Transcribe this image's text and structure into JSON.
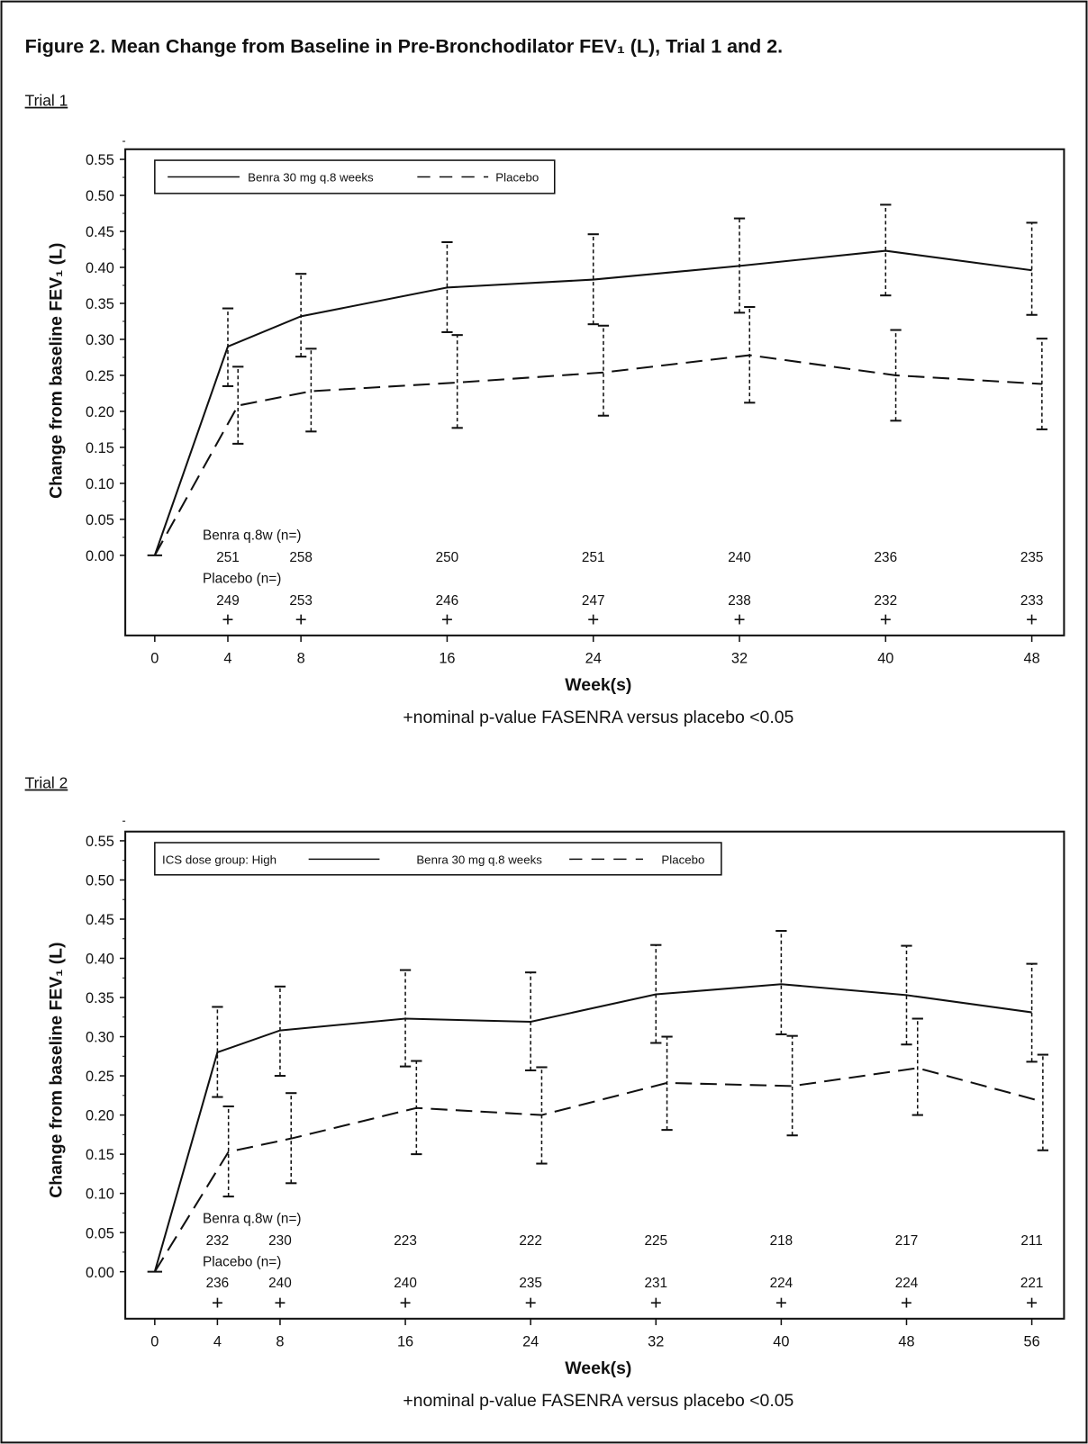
{
  "title": "Figure 2. Mean Change from Baseline in Pre-Bronchodilator FEV₁ (L), Trial 1 and 2.",
  "footnote": "+nominal p-value FASENRA versus placebo <0.05",
  "chart_data": [
    {
      "type": "line",
      "panel_label": "Trial 1",
      "xlabel": "Week(s)",
      "ylabel": "Change from baseline FEV₁ (L)",
      "ylim": [
        0,
        0.55
      ],
      "yticks": [
        "0.00",
        "0.05",
        "0.10",
        "0.15",
        "0.20",
        "0.25",
        "0.30",
        "0.35",
        "0.40",
        "0.45",
        "0.50",
        "0.55"
      ],
      "x": [
        0,
        4,
        8,
        16,
        24,
        32,
        40,
        48
      ],
      "legend": {
        "placement": "top-left",
        "prefix": "",
        "entries": [
          "Benra 30 mg q.8 weeks",
          "Placebo"
        ]
      },
      "series": [
        {
          "name": "Benra 30 mg q.8 weeks",
          "style": "solid",
          "values": [
            0,
            0.29,
            0.332,
            0.372,
            0.383,
            0.402,
            0.423,
            0.396
          ],
          "lower": [
            null,
            0.235,
            0.276,
            0.31,
            0.321,
            0.337,
            0.361,
            0.334
          ],
          "upper": [
            null,
            0.343,
            0.391,
            0.435,
            0.446,
            0.468,
            0.487,
            0.462
          ]
        },
        {
          "name": "Placebo",
          "style": "dashed",
          "values": [
            0,
            0.208,
            0.228,
            0.24,
            0.254,
            0.278,
            0.25,
            0.238
          ],
          "lower": [
            null,
            0.155,
            0.172,
            0.177,
            0.194,
            0.212,
            0.187,
            0.175
          ],
          "upper": [
            null,
            0.262,
            0.287,
            0.306,
            0.319,
            0.345,
            0.313,
            0.301
          ]
        }
      ],
      "n_tables": [
        {
          "label": "Benra q.8w (n=)",
          "values": [
            "251",
            "258",
            "250",
            "251",
            "240",
            "236",
            "235"
          ]
        },
        {
          "label": "Placebo (n=)",
          "values": [
            "249",
            "253",
            "246",
            "247",
            "238",
            "232",
            "233"
          ]
        }
      ],
      "significance_marker": "+"
    },
    {
      "type": "line",
      "panel_label": "Trial 2",
      "xlabel": "Week(s)",
      "ylabel": "Change from baseline FEV₁ (L)",
      "ylim": [
        0,
        0.55
      ],
      "yticks": [
        "0.00",
        "0.05",
        "0.10",
        "0.15",
        "0.20",
        "0.25",
        "0.30",
        "0.35",
        "0.40",
        "0.45",
        "0.50",
        "0.55"
      ],
      "x": [
        0,
        4,
        8,
        16,
        24,
        32,
        40,
        48,
        56
      ],
      "legend": {
        "placement": "top-left",
        "prefix": "ICS dose group: High",
        "entries": [
          "Benra 30 mg q.8 weeks",
          "Placebo"
        ]
      },
      "series": [
        {
          "name": "Benra 30 mg q.8 weeks",
          "style": "solid",
          "values": [
            0,
            0.28,
            0.308,
            0.323,
            0.319,
            0.354,
            0.367,
            0.353,
            0.331
          ],
          "lower": [
            null,
            0.223,
            0.25,
            0.262,
            0.257,
            0.292,
            0.303,
            0.29,
            0.268
          ],
          "upper": [
            null,
            0.338,
            0.364,
            0.385,
            0.382,
            0.417,
            0.435,
            0.416,
            0.393
          ]
        },
        {
          "name": "Placebo",
          "style": "dashed",
          "values": [
            0,
            0.153,
            0.17,
            0.209,
            0.2,
            0.241,
            0.237,
            0.26,
            0.217
          ],
          "lower": [
            null,
            0.096,
            0.113,
            0.15,
            0.138,
            0.181,
            0.174,
            0.2,
            0.155
          ],
          "upper": [
            null,
            0.211,
            0.228,
            0.269,
            0.261,
            0.3,
            0.301,
            0.323,
            0.277
          ]
        }
      ],
      "n_tables": [
        {
          "label": "Benra q.8w (n=)",
          "values": [
            "232",
            "230",
            "223",
            "222",
            "225",
            "218",
            "217",
            "211"
          ]
        },
        {
          "label": "Placebo (n=)",
          "values": [
            "236",
            "240",
            "240",
            "235",
            "231",
            "224",
            "224",
            "221"
          ]
        }
      ],
      "significance_marker": "+"
    }
  ]
}
